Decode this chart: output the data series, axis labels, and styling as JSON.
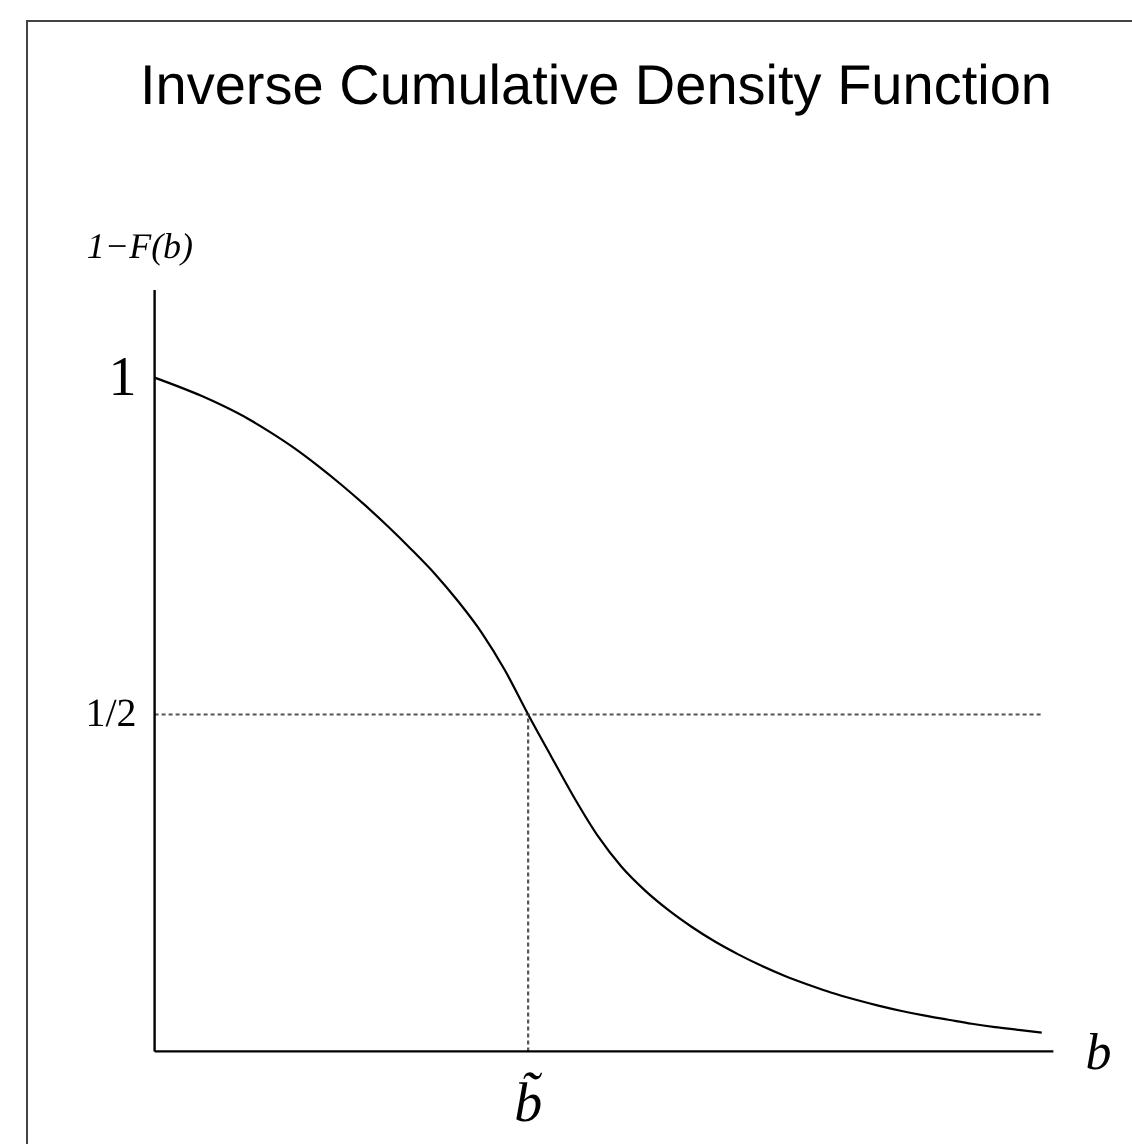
{
  "chart_data": {
    "type": "line",
    "title": "Inverse Cumulative Density Function",
    "xlabel": "b",
    "ylabel": "1−F(b)",
    "categories": [
      null,
      null,
      null,
      null,
      null,
      null,
      null,
      null,
      null,
      null,
      null,
      null,
      null,
      null,
      null,
      null,
      "b̃",
      null,
      null,
      null,
      null,
      null,
      null,
      null,
      null,
      null,
      null,
      null,
      null,
      null,
      null,
      null,
      null,
      null,
      null,
      null,
      null,
      null,
      null
    ],
    "ylim": [
      0,
      1.13
    ],
    "yticks": [
      {
        "value": 0.5,
        "label": "1/2"
      },
      1
    ],
    "series": [
      {
        "color": "#000000",
        "line_style": "solid",
        "values": [
          1,
          0.987,
          0.973,
          0.957,
          0.939,
          0.918,
          0.895,
          0.869,
          0.841,
          0.811,
          0.779,
          0.745,
          0.709,
          0.668,
          0.622,
          0.566,
          0.5,
          0.437,
          0.375,
          0.319,
          0.274,
          0.239,
          0.21,
          0.185,
          0.163,
          0.144,
          0.127,
          0.112,
          0.099,
          0.087,
          0.077,
          0.068,
          0.06,
          0.053,
          0.047,
          0.041,
          0.036,
          0.032,
          0.028
        ]
      },
      {
        "type": "line",
        "color": "#555555",
        "line_style": "dotted",
        "x": [
          "b̃",
          "b̃"
        ],
        "values": [
          0,
          0.5
        ]
      }
    ],
    "ref_lines": [
      {
        "axis": "y",
        "value": 0.5,
        "color": "#555555",
        "line_style": "dotted"
      }
    ]
  }
}
